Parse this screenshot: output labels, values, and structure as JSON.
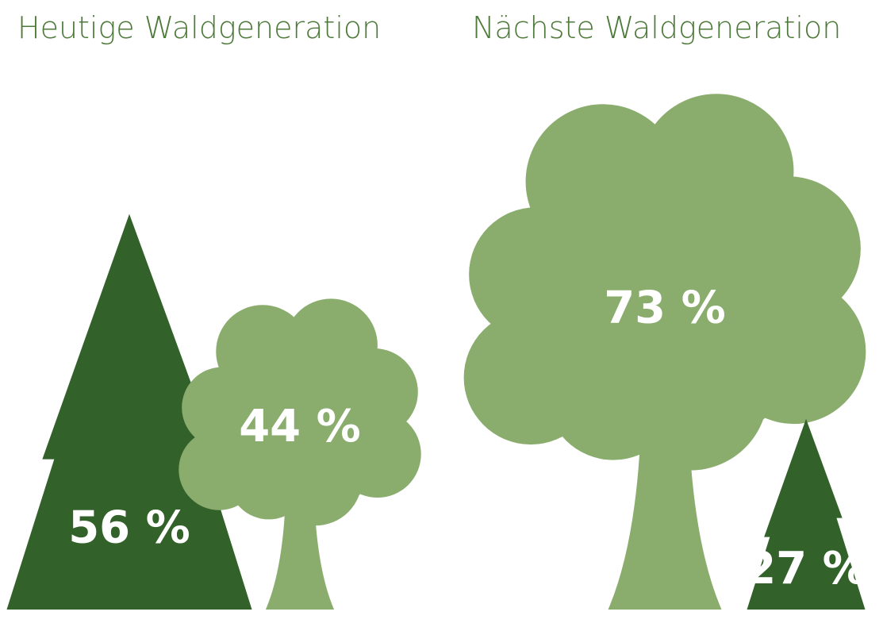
{
  "chart_data": [
    {
      "type": "pictograph",
      "title": "Heutige Waldgeneration",
      "values": [
        56,
        44
      ],
      "value_labels": [
        "56 %",
        "44 %"
      ],
      "colors": [
        "#33612a",
        "#8aad6e"
      ],
      "icons": [
        "conifer",
        "deciduous"
      ]
    },
    {
      "type": "pictograph",
      "title": "Nächste Waldgeneration",
      "values": [
        73,
        27
      ],
      "value_labels": [
        "73 %",
        "27 %"
      ],
      "colors": [
        "#8aad6e",
        "#33612a"
      ],
      "icons": [
        "deciduous",
        "conifer"
      ]
    }
  ]
}
